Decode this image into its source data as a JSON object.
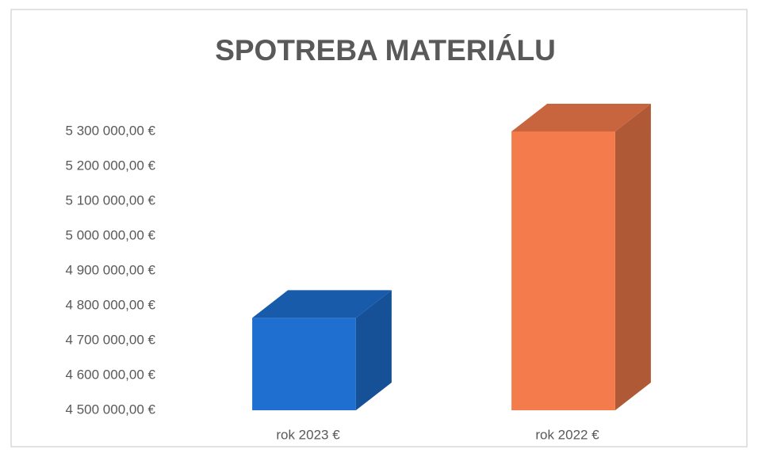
{
  "chart_data": {
    "type": "bar3d",
    "title": "SPOTREBA MATERIÁLU",
    "categories": [
      "rok 2023 €",
      "rok 2022 €"
    ],
    "values": [
      4765000,
      5300000
    ],
    "colors": [
      "#1f6fd0",
      "#f47b4c"
    ],
    "ylim": [
      4500000,
      5300000
    ],
    "yticks": [
      {
        "value": 4500000,
        "label": "4 500 000,00 €"
      },
      {
        "value": 4600000,
        "label": "4 600 000,00 €"
      },
      {
        "value": 4700000,
        "label": "4 700 000,00 €"
      },
      {
        "value": 4800000,
        "label": "4 800 000,00 €"
      },
      {
        "value": 4900000,
        "label": "4 900 000,00 €"
      },
      {
        "value": 5000000,
        "label": "5 000 000,00 €"
      },
      {
        "value": 5100000,
        "label": "5 100 000,00 €"
      },
      {
        "value": 5200000,
        "label": "5 200 000,00 €"
      },
      {
        "value": 5300000,
        "label": "5 300 000,00 €"
      }
    ],
    "grid": false
  }
}
